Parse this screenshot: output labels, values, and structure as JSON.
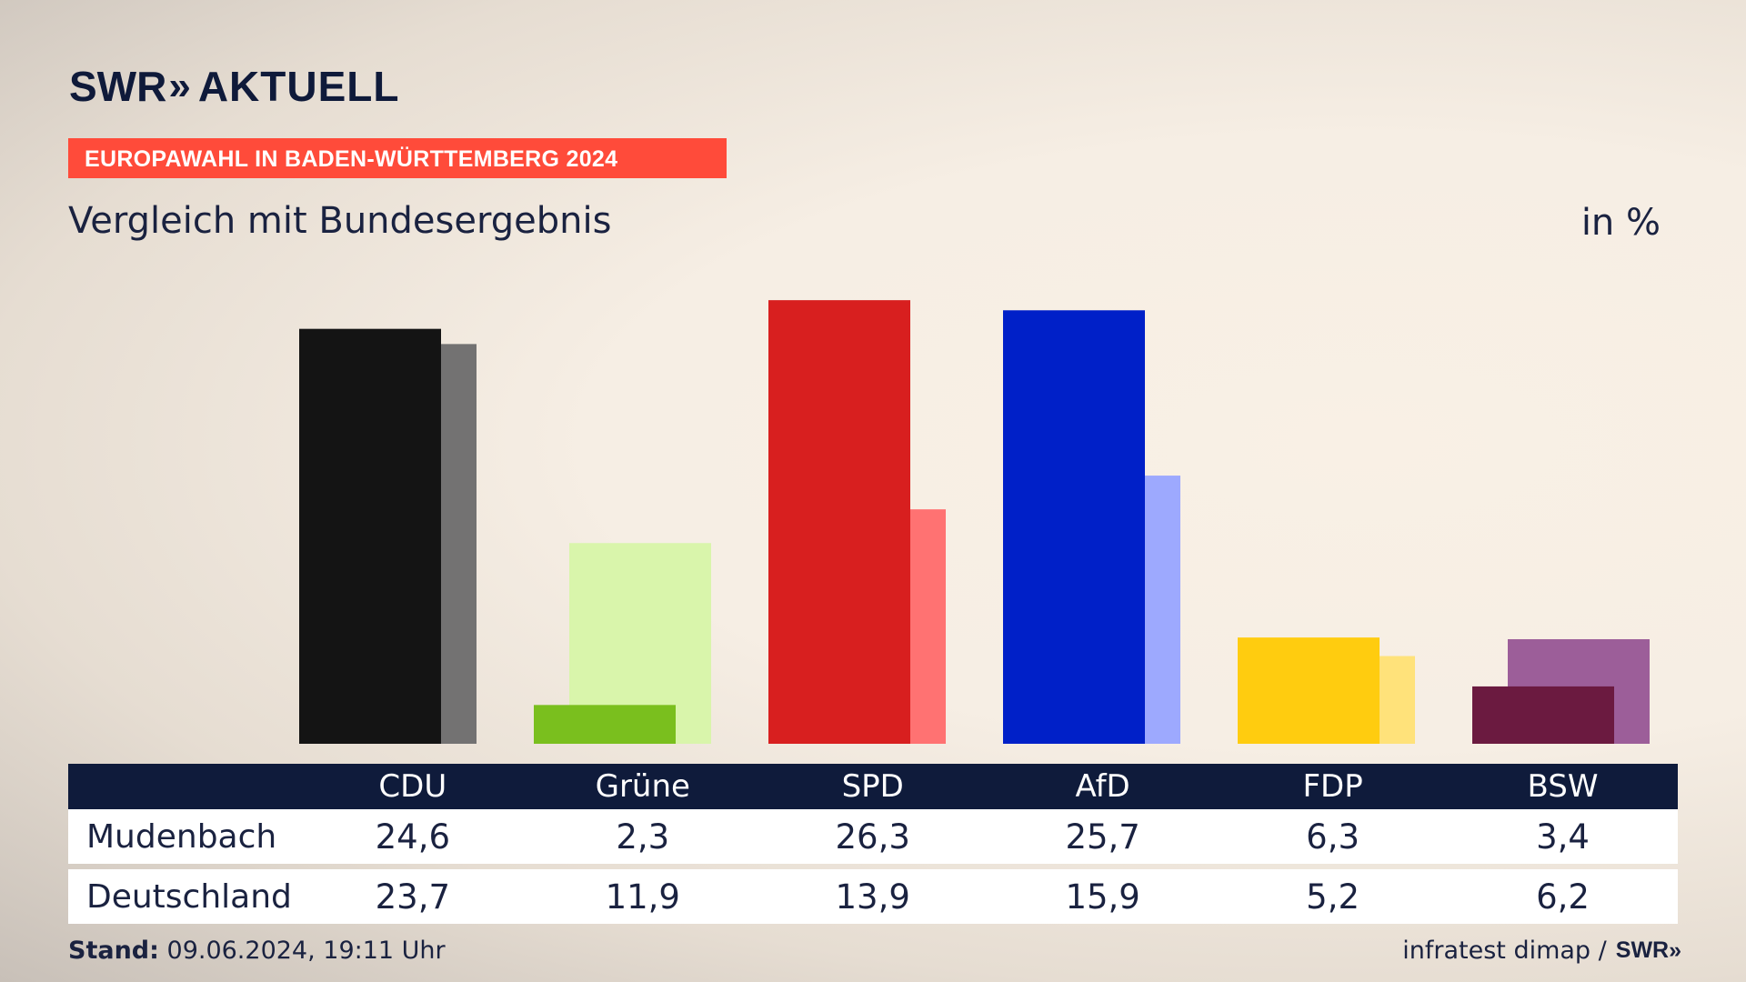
{
  "header": {
    "brand": "SWR",
    "brand_chevrons": "»",
    "brand_sub": "AKTUELL",
    "kicker": "EUROPAWAHL IN BADEN-WÜRTTEMBERG 2024",
    "title": "Vergleich mit Bundesergebnis",
    "unit": "in %"
  },
  "colors": {
    "kicker_bg": "#ff4b3a",
    "table_header_bg": "#0f1b3b"
  },
  "chart_data": {
    "type": "bar",
    "title": "Vergleich mit Bundesergebnis",
    "ylabel": "in %",
    "ylim": [
      0,
      27
    ],
    "grid": false,
    "legend": "none",
    "categories": [
      "CDU",
      "Grüne",
      "SPD",
      "AfD",
      "FDP",
      "BSW"
    ],
    "series": [
      {
        "name": "Mudenbach",
        "values": [
          24.6,
          2.3,
          26.3,
          25.7,
          6.3,
          3.4
        ],
        "colors": [
          "#141414",
          "#7abf1e",
          "#d81f1f",
          "#0020c8",
          "#ffcc0f",
          "#6b1a40"
        ]
      },
      {
        "name": "Deutschland",
        "values": [
          23.7,
          11.9,
          13.9,
          15.9,
          5.2,
          6.2
        ],
        "colors": [
          "#737272",
          "#d9f5ab",
          "#ff7272",
          "#9da9fe",
          "#ffe27a",
          "#9c5e99"
        ]
      }
    ]
  },
  "table": {
    "headers": [
      "CDU",
      "Grüne",
      "SPD",
      "AfD",
      "FDP",
      "BSW"
    ],
    "rows": [
      {
        "label": "Mudenbach",
        "values": [
          "24,6",
          "2,3",
          "26,3",
          "25,7",
          "6,3",
          "3,4"
        ]
      },
      {
        "label": "Deutschland",
        "values": [
          "23,7",
          "11,9",
          "13,9",
          "15,9",
          "5,2",
          "6,2"
        ]
      }
    ]
  },
  "footer": {
    "stand_label": "Stand:",
    "stand_value": "09.06.2024, 19:11 Uhr",
    "source": "infratest dimap /",
    "source_logo": "SWR",
    "source_logo_chevrons": "»"
  }
}
